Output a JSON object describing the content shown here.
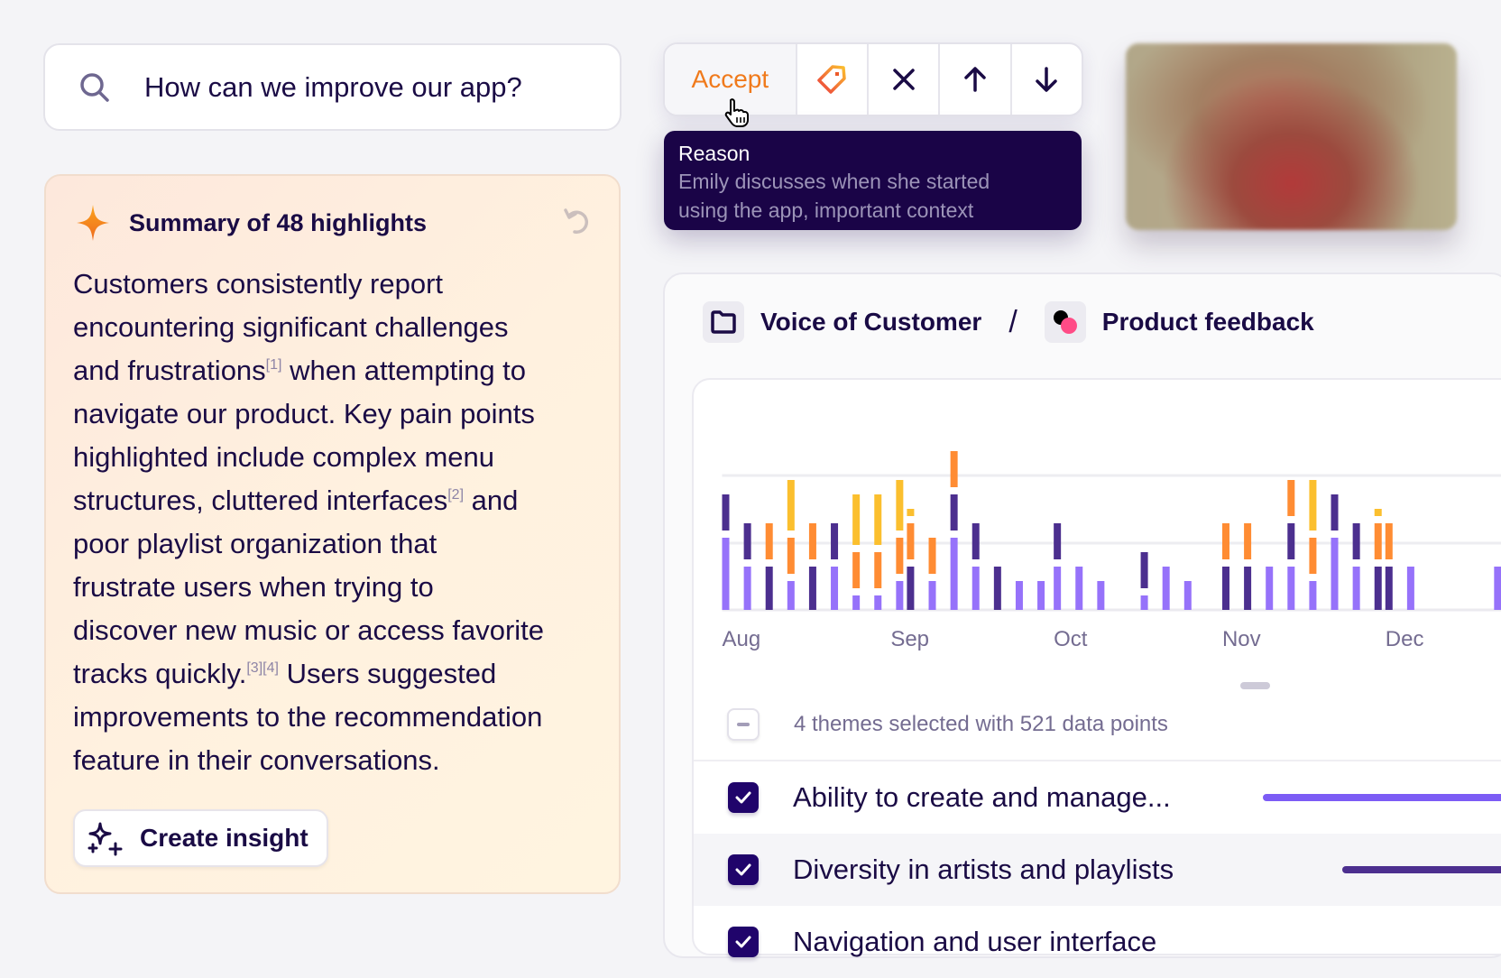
{
  "search": {
    "icon": "search-icon",
    "query": "How can we improve our app?"
  },
  "summary": {
    "title": "Summary of 48 highlights",
    "icons": {
      "sparkle": "sparkle-icon",
      "regenerate": "undo-icon"
    },
    "lines": [
      [
        {
          "text": "Customers consistently report"
        }
      ],
      [
        {
          "text": "encountering significant challenges"
        }
      ],
      [
        {
          "text": "and frustrations"
        },
        {
          "sup": "[1]"
        },
        {
          "text": " when attempting to"
        }
      ],
      [
        {
          "text": "navigate our product. Key pain points"
        }
      ],
      [
        {
          "text": "highlighted include complex menu"
        }
      ],
      [
        {
          "text": "structures, cluttered interfaces"
        },
        {
          "sup": "[2]"
        },
        {
          "text": " and"
        }
      ],
      [
        {
          "text": "poor playlist organization that"
        }
      ],
      [
        {
          "text": "frustrate users when trying to"
        }
      ],
      [
        {
          "text": "discover new music or access favorite"
        }
      ],
      [
        {
          "text": "tracks quickly."
        },
        {
          "sup": "[3]"
        },
        {
          "sup": "[4]"
        },
        {
          "text": " Users suggested"
        }
      ],
      [
        {
          "text": "improvements to the recommendation"
        }
      ],
      [
        {
          "text": "feature in their conversations."
        }
      ]
    ],
    "create_button": "Create insight"
  },
  "toolbar": {
    "accept": "Accept",
    "buttons": [
      "tag-icon",
      "close-icon",
      "arrow-up-icon",
      "arrow-down-icon"
    ]
  },
  "tooltip": {
    "title": "Reason",
    "body_line1": "Emily discusses when she started",
    "body_line2": "using the app, important context"
  },
  "breadcrumb": {
    "folder": "Voice of Customer",
    "separator": "/",
    "project": "Product feedback"
  },
  "colors": {
    "accent": "#f07a1c",
    "navy": "#1a0447",
    "light_purple": "#9672fa",
    "dark_purple": "#4c2f8f",
    "orange": "#ff8c33",
    "yellow": "#fbbf2e"
  },
  "chart_data": {
    "type": "bar",
    "stacked": true,
    "grid": true,
    "x_ticks": [
      "Aug",
      "Sep",
      "Oct",
      "Nov",
      "Dec"
    ],
    "columns": [
      {
        "x": "Aug 1",
        "segments": [
          {
            "color": "#9672fa",
            "value": 5
          },
          {
            "color": "#4c2f8f",
            "value": 3
          }
        ]
      },
      {
        "x": "Aug 5",
        "segments": [
          {
            "color": "#9672fa",
            "value": 3
          },
          {
            "color": "#4c2f8f",
            "value": 3
          }
        ]
      },
      {
        "x": "Aug 9",
        "segments": [
          {
            "color": "#4c2f8f",
            "value": 3
          },
          {
            "color": "#ff8c33",
            "value": 3
          }
        ]
      },
      {
        "x": "Aug 13",
        "segments": [
          {
            "color": "#9672fa",
            "value": 2
          },
          {
            "color": "#ff8c33",
            "value": 3
          },
          {
            "color": "#fbbf2e",
            "value": 4
          }
        ]
      },
      {
        "x": "Aug 17",
        "segments": [
          {
            "color": "#4c2f8f",
            "value": 3
          },
          {
            "color": "#ff8c33",
            "value": 3
          }
        ]
      },
      {
        "x": "Aug 21",
        "segments": [
          {
            "color": "#9672fa",
            "value": 3
          },
          {
            "color": "#4c2f8f",
            "value": 3
          }
        ]
      },
      {
        "x": "Aug 25",
        "segments": [
          {
            "color": "#9672fa",
            "value": 1
          },
          {
            "color": "#ff8c33",
            "value": 3
          },
          {
            "color": "#fbbf2e",
            "value": 4
          }
        ]
      },
      {
        "x": "Aug 29",
        "segments": [
          {
            "color": "#9672fa",
            "value": 1
          },
          {
            "color": "#ff8c33",
            "value": 3
          },
          {
            "color": "#fbbf2e",
            "value": 4
          }
        ]
      },
      {
        "x": "Sep 2",
        "segments": [
          {
            "color": "#9672fa",
            "value": 2
          },
          {
            "color": "#ff8c33",
            "value": 3
          },
          {
            "color": "#fbbf2e",
            "value": 4
          }
        ]
      },
      {
        "x": "Sep 4",
        "segments": [
          {
            "color": "#4c2f8f",
            "value": 3
          },
          {
            "color": "#ff8c33",
            "value": 3
          },
          {
            "color": "#fbbf2e",
            "value": 1
          }
        ]
      },
      {
        "x": "Sep 8",
        "segments": [
          {
            "color": "#9672fa",
            "value": 2
          },
          {
            "color": "#ff8c33",
            "value": 3
          }
        ]
      },
      {
        "x": "Sep 12",
        "segments": [
          {
            "color": "#9672fa",
            "value": 5
          },
          {
            "color": "#4c2f8f",
            "value": 3
          },
          {
            "color": "#ff8c33",
            "value": 3
          }
        ]
      },
      {
        "x": "Sep 16",
        "segments": [
          {
            "color": "#9672fa",
            "value": 3
          },
          {
            "color": "#4c2f8f",
            "value": 3
          }
        ]
      },
      {
        "x": "Sep 20",
        "segments": [
          {
            "color": "#4c2f8f",
            "value": 3
          }
        ]
      },
      {
        "x": "Sep 24",
        "segments": [
          {
            "color": "#9672fa",
            "value": 2
          }
        ]
      },
      {
        "x": "Sep 28",
        "segments": [
          {
            "color": "#9672fa",
            "value": 2
          }
        ]
      },
      {
        "x": "Oct 1",
        "segments": [
          {
            "color": "#9672fa",
            "value": 3
          },
          {
            "color": "#4c2f8f",
            "value": 3
          }
        ]
      },
      {
        "x": "Oct 5",
        "segments": [
          {
            "color": "#9672fa",
            "value": 3
          }
        ]
      },
      {
        "x": "Oct 9",
        "segments": [
          {
            "color": "#9672fa",
            "value": 2
          }
        ]
      },
      {
        "x": "Oct 17",
        "segments": [
          {
            "color": "#9672fa",
            "value": 1
          },
          {
            "color": "#4c2f8f",
            "value": 3
          }
        ]
      },
      {
        "x": "Oct 21",
        "segments": [
          {
            "color": "#9672fa",
            "value": 3
          }
        ]
      },
      {
        "x": "Oct 25",
        "segments": [
          {
            "color": "#9672fa",
            "value": 2
          }
        ]
      },
      {
        "x": "Nov 1",
        "segments": [
          {
            "color": "#4c2f8f",
            "value": 3
          },
          {
            "color": "#ff8c33",
            "value": 3
          }
        ]
      },
      {
        "x": "Nov 5",
        "segments": [
          {
            "color": "#4c2f8f",
            "value": 3
          },
          {
            "color": "#ff8c33",
            "value": 3
          }
        ]
      },
      {
        "x": "Nov 9",
        "segments": [
          {
            "color": "#9672fa",
            "value": 3
          }
        ]
      },
      {
        "x": "Nov 13",
        "segments": [
          {
            "color": "#9672fa",
            "value": 3
          },
          {
            "color": "#4c2f8f",
            "value": 3
          },
          {
            "color": "#ff8c33",
            "value": 3
          }
        ]
      },
      {
        "x": "Nov 17",
        "segments": [
          {
            "color": "#9672fa",
            "value": 2
          },
          {
            "color": "#ff8c33",
            "value": 3
          },
          {
            "color": "#fbbf2e",
            "value": 4
          }
        ]
      },
      {
        "x": "Nov 21",
        "segments": [
          {
            "color": "#9672fa",
            "value": 5
          },
          {
            "color": "#4c2f8f",
            "value": 3
          }
        ]
      },
      {
        "x": "Nov 25",
        "segments": [
          {
            "color": "#9672fa",
            "value": 3
          },
          {
            "color": "#4c2f8f",
            "value": 3
          }
        ]
      },
      {
        "x": "Nov 29",
        "segments": [
          {
            "color": "#4c2f8f",
            "value": 3
          },
          {
            "color": "#ff8c33",
            "value": 3
          },
          {
            "color": "#fbbf2e",
            "value": 1
          }
        ]
      },
      {
        "x": "Dec 1",
        "segments": [
          {
            "color": "#4c2f8f",
            "value": 3
          },
          {
            "color": "#ff8c33",
            "value": 3
          }
        ]
      },
      {
        "x": "Dec 5",
        "segments": [
          {
            "color": "#9672fa",
            "value": 3
          }
        ]
      },
      {
        "x": "Dec 21",
        "segments": [
          {
            "color": "#9672fa",
            "value": 3
          }
        ]
      }
    ]
  },
  "themes": {
    "summary": "4 themes selected with 521 data points",
    "rows": [
      {
        "label": "Ability to create and manage...",
        "checked": true,
        "color": "#7c5cf5"
      },
      {
        "label": "Diversity in artists and playlists",
        "checked": true,
        "color": "#4c2f8f"
      },
      {
        "label": "Navigation and user interface",
        "checked": true
      }
    ]
  }
}
